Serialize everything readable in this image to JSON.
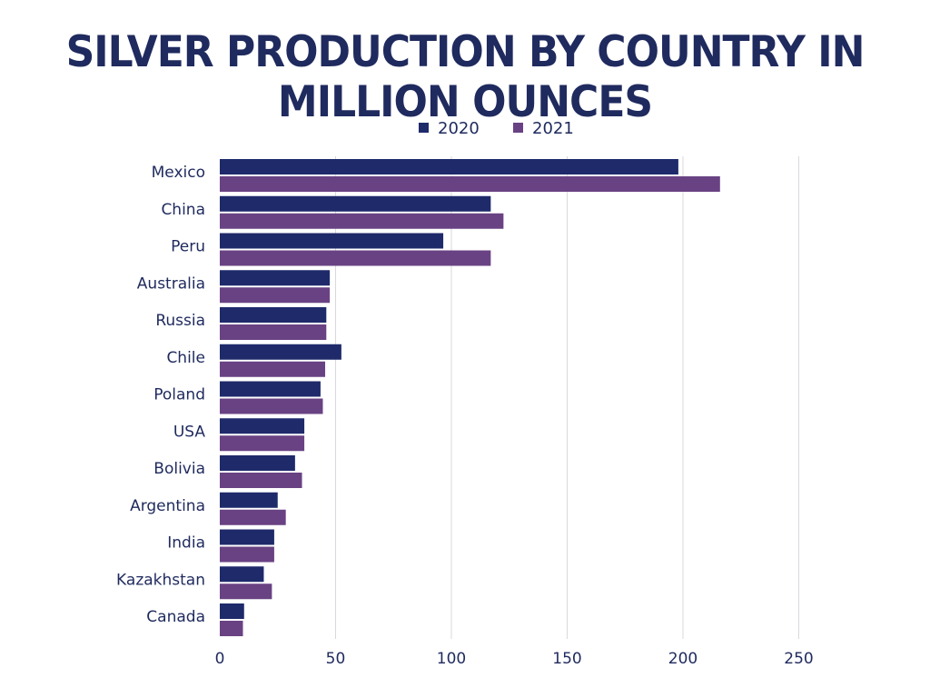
{
  "chart_data": {
    "type": "bar",
    "orientation": "horizontal",
    "title": "SILVER PRODUCTION BY COUNTRY IN MILLION OUNCES",
    "xlabel": "",
    "ylabel": "",
    "categories": [
      "Mexico",
      "China",
      "Peru",
      "Australia",
      "Russia",
      "Chile",
      "Poland",
      "USA",
      "Bolivia",
      "Argentina",
      "India",
      "Kazakhstan",
      "Canada"
    ],
    "series": [
      {
        "name": "2020",
        "color": "#1f2a6b",
        "values": [
          198,
          117,
          96.5,
          47.5,
          46,
          52.5,
          43.5,
          36.5,
          32.5,
          25,
          23.5,
          19,
          10.5
        ]
      },
      {
        "name": "2021",
        "color": "#694283",
        "values": [
          216,
          122.5,
          117,
          47.5,
          46,
          45.5,
          44.5,
          36.5,
          35.5,
          28.5,
          23.5,
          22.5,
          10
        ]
      }
    ],
    "xlim": [
      0,
      275
    ],
    "xticks": [
      0,
      50,
      100,
      150,
      200,
      250
    ],
    "grid": true,
    "legend": "top"
  }
}
